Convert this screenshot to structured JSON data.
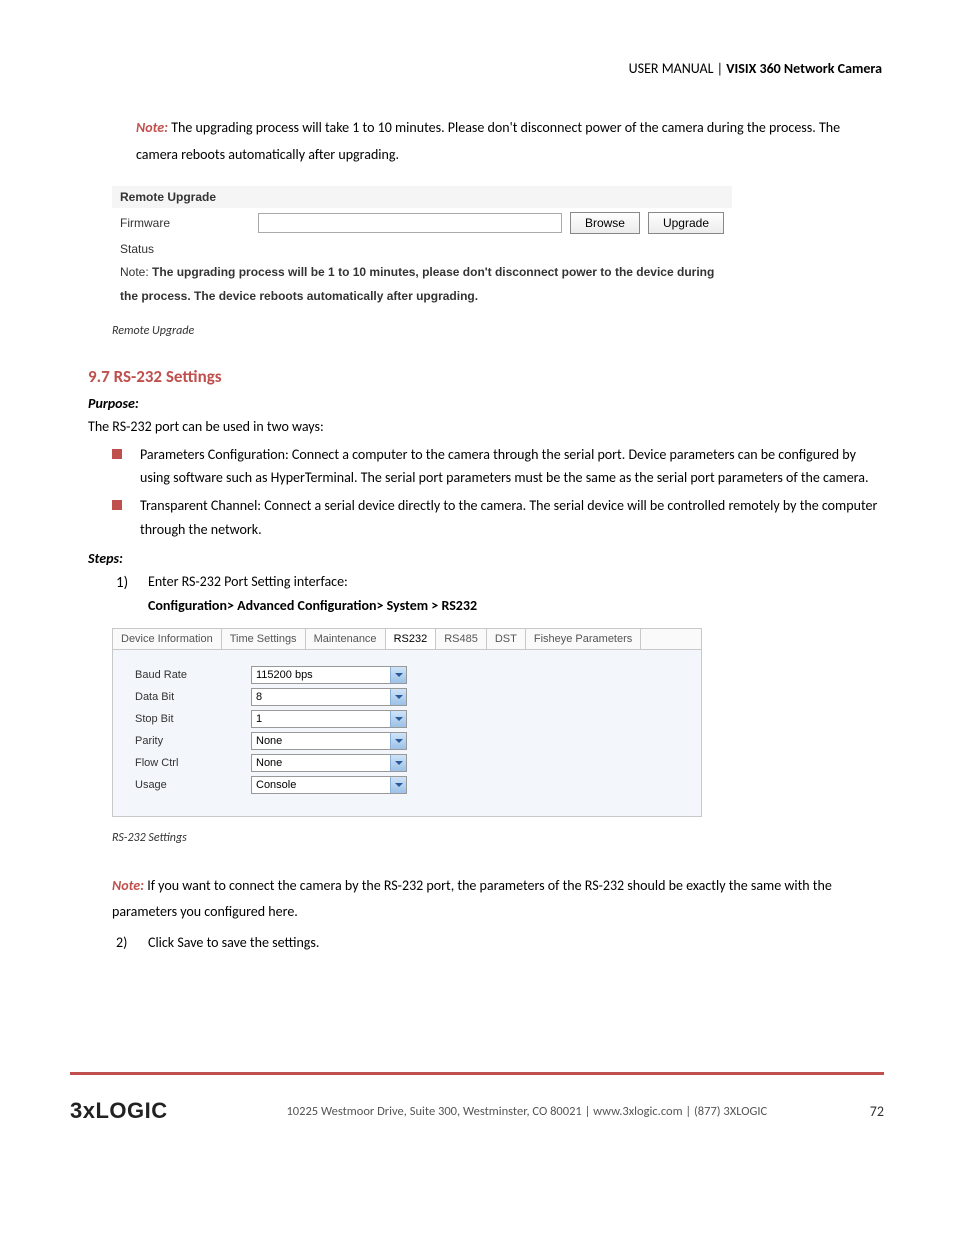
{
  "header": {
    "prefix": "USER MANUAL | ",
    "title": "VISIX 360 Network Camera"
  },
  "note1": {
    "label": "Note:",
    "text": " The upgrading process will take 1 to 10 minutes. Please don't disconnect power of the camera during the process. The camera reboots automatically after upgrading."
  },
  "upgrade": {
    "panel_title": "Remote Upgrade",
    "firmware_label": "Firmware",
    "status_label": "Status",
    "browse_btn": "Browse",
    "upgrade_btn": "Upgrade",
    "note_prefix": "Note:",
    "note_text": "The upgrading process will be 1 to 10 minutes, please don't disconnect power to the device during the process. The device reboots automatically after upgrading.",
    "caption": "Remote Upgrade"
  },
  "section": {
    "heading": "9.7 RS-232 Settings",
    "purpose_label": "Purpose:",
    "intro": "The RS-232 port can be used in two ways:",
    "bullets": [
      "Parameters Configuration: Connect a computer to the camera through the serial port. Device parameters can be configured by using software such as HyperTerminal. The serial port parameters must be the same as the serial port parameters of the camera.",
      "Transparent Channel: Connect a serial device directly to the camera. The serial device will be controlled remotely by the computer through the network."
    ],
    "steps_label": "Steps:",
    "step1_num": "1)",
    "step1_text": "Enter RS-232 Port Setting interface:",
    "breadcrumb": "Configuration> Advanced Configuration> System > RS232"
  },
  "rs232": {
    "tabs": [
      "Device Information",
      "Time Settings",
      "Maintenance",
      "RS232",
      "RS485",
      "DST",
      "Fisheye Parameters"
    ],
    "active_tab_index": 3,
    "fields": [
      {
        "label": "Baud Rate",
        "value": "115200 bps"
      },
      {
        "label": "Data Bit",
        "value": "8"
      },
      {
        "label": "Stop Bit",
        "value": "1"
      },
      {
        "label": "Parity",
        "value": "None"
      },
      {
        "label": "Flow Ctrl",
        "value": "None"
      },
      {
        "label": "Usage",
        "value": "Console"
      }
    ],
    "caption": "RS-232 Settings"
  },
  "note2": {
    "label": "Note:",
    "text": " If you want to connect the camera by the RS-232 port, the parameters of the RS-232 should be exactly the same with the parameters you configured here."
  },
  "step2": {
    "num": "2)",
    "text": "Click Save to save the settings."
  },
  "footer": {
    "logo": "3xLOGIC",
    "text": "10225 Westmoor Drive, Suite 300, Westminster, CO 80021 | www.3xlogic.com | (877) 3XLOGIC",
    "page": "72"
  },
  "colors": {
    "accent": "#c0504d"
  }
}
